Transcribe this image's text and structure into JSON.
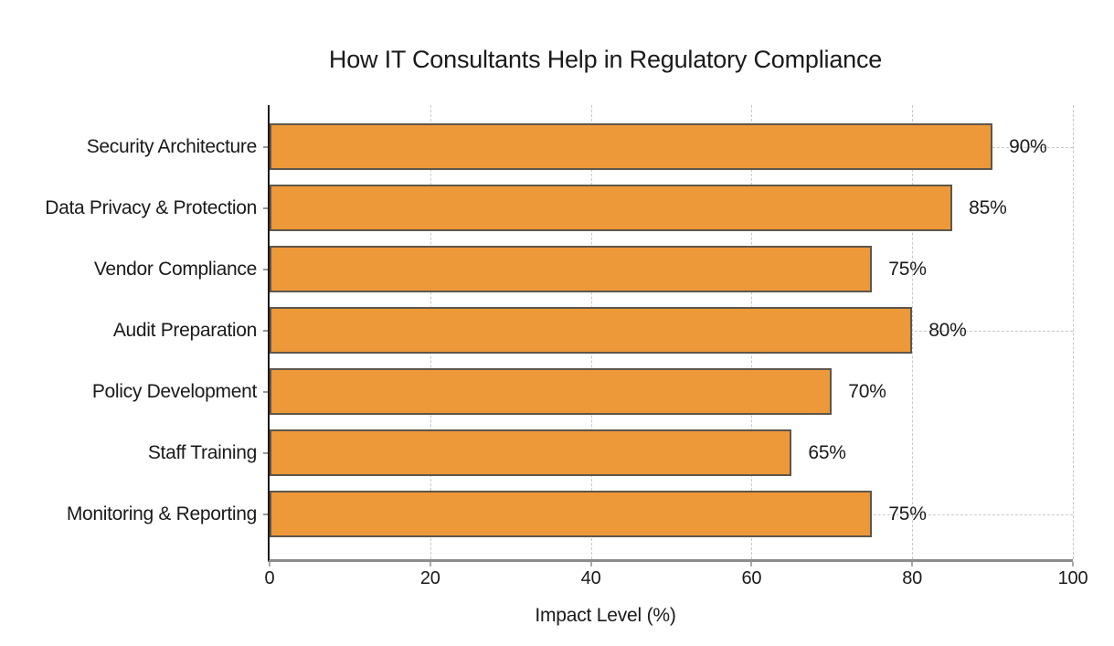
{
  "chart_data": {
    "type": "bar",
    "orientation": "horizontal",
    "title": "How IT Consultants Help in Regulatory Compliance",
    "xlabel": "Impact Level (%)",
    "categories": [
      "Security Architecture",
      "Data Privacy & Protection",
      "Vendor Compliance",
      "Audit Preparation",
      "Policy Development",
      "Staff Training",
      "Monitoring & Reporting"
    ],
    "values": [
      90,
      85,
      75,
      80,
      70,
      65,
      75
    ],
    "value_labels": [
      "90%",
      "85%",
      "75%",
      "80%",
      "70%",
      "65%",
      "75%"
    ],
    "xlim": [
      0,
      100
    ],
    "xticks": [
      0,
      20,
      40,
      60,
      80,
      100
    ],
    "grid": true,
    "grid_style": "dashed",
    "h_gridline_rows": [
      0,
      3,
      6
    ],
    "legend": "none",
    "colors": {
      "bar_fill": "#ED9839",
      "bar_border": "#5E564A",
      "gridline": "#C9C9C9",
      "x_axis_line": "#8C8C8C",
      "y_spine": "#1A1A1A",
      "text": "#1A1A1A",
      "background": "#FFFFFF"
    }
  }
}
